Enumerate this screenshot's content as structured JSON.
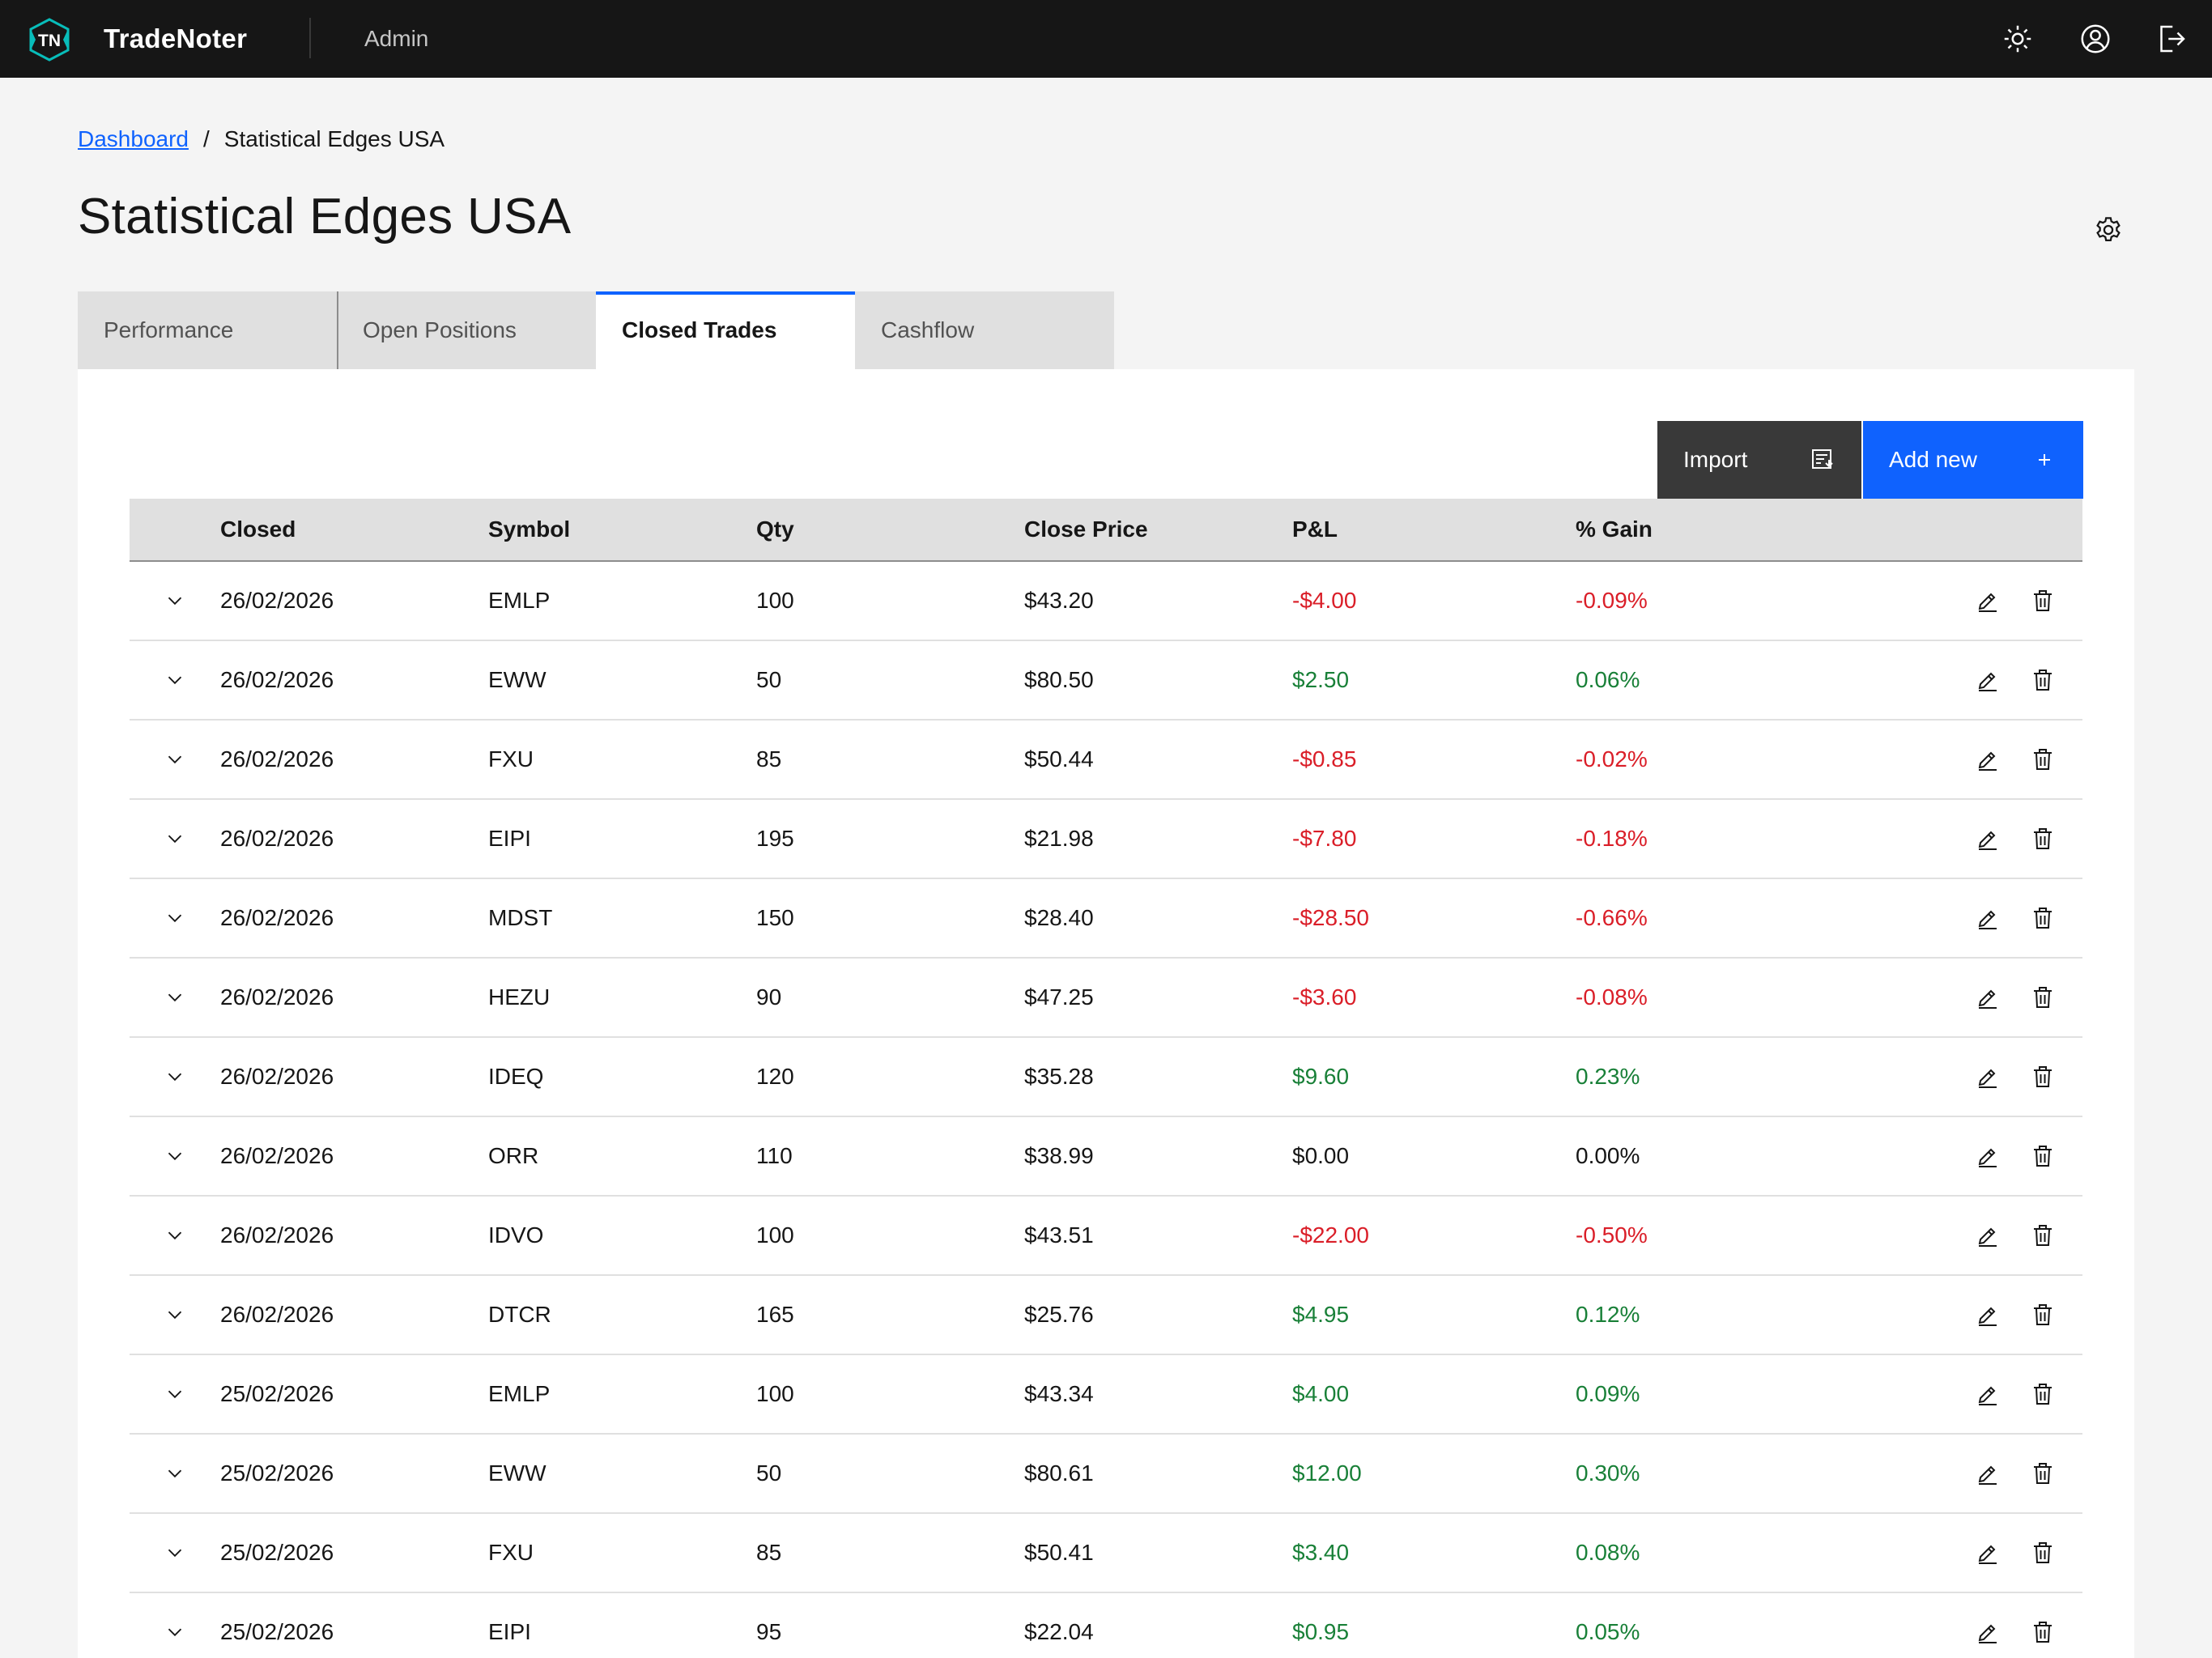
{
  "app": {
    "logo_text": "TN",
    "name": "TradeNoter",
    "user_role": "Admin"
  },
  "header_icons": [
    "sun-icon",
    "user-avatar-icon",
    "logout-icon"
  ],
  "breadcrumb": {
    "parent": "Dashboard",
    "separator": "/",
    "current": "Statistical Edges USA"
  },
  "page": {
    "title": "Statistical Edges USA"
  },
  "tabs": [
    {
      "label": "Performance",
      "active": false
    },
    {
      "label": "Open Positions",
      "active": false
    },
    {
      "label": "Closed Trades",
      "active": true
    },
    {
      "label": "Cashflow",
      "active": false
    }
  ],
  "toolbar": {
    "import_label": "Import",
    "add_label": "Add new"
  },
  "table": {
    "columns": [
      "Closed",
      "Symbol",
      "Qty",
      "Close Price",
      "P&L",
      "% Gain"
    ],
    "rows": [
      {
        "closed": "26/02/2026",
        "symbol": "EMLP",
        "qty": "100",
        "price": "$43.20",
        "pnl": "-$4.00",
        "gain": "-0.09%",
        "tone": "neg"
      },
      {
        "closed": "26/02/2026",
        "symbol": "EWW",
        "qty": "50",
        "price": "$80.50",
        "pnl": "$2.50",
        "gain": "0.06%",
        "tone": "pos"
      },
      {
        "closed": "26/02/2026",
        "symbol": "FXU",
        "qty": "85",
        "price": "$50.44",
        "pnl": "-$0.85",
        "gain": "-0.02%",
        "tone": "neg"
      },
      {
        "closed": "26/02/2026",
        "symbol": "EIPI",
        "qty": "195",
        "price": "$21.98",
        "pnl": "-$7.80",
        "gain": "-0.18%",
        "tone": "neg"
      },
      {
        "closed": "26/02/2026",
        "symbol": "MDST",
        "qty": "150",
        "price": "$28.40",
        "pnl": "-$28.50",
        "gain": "-0.66%",
        "tone": "neg"
      },
      {
        "closed": "26/02/2026",
        "symbol": "HEZU",
        "qty": "90",
        "price": "$47.25",
        "pnl": "-$3.60",
        "gain": "-0.08%",
        "tone": "neg"
      },
      {
        "closed": "26/02/2026",
        "symbol": "IDEQ",
        "qty": "120",
        "price": "$35.28",
        "pnl": "$9.60",
        "gain": "0.23%",
        "tone": "pos"
      },
      {
        "closed": "26/02/2026",
        "symbol": "ORR",
        "qty": "110",
        "price": "$38.99",
        "pnl": "$0.00",
        "gain": "0.00%",
        "tone": "neu"
      },
      {
        "closed": "26/02/2026",
        "symbol": "IDVO",
        "qty": "100",
        "price": "$43.51",
        "pnl": "-$22.00",
        "gain": "-0.50%",
        "tone": "neg"
      },
      {
        "closed": "26/02/2026",
        "symbol": "DTCR",
        "qty": "165",
        "price": "$25.76",
        "pnl": "$4.95",
        "gain": "0.12%",
        "tone": "pos"
      },
      {
        "closed": "25/02/2026",
        "symbol": "EMLP",
        "qty": "100",
        "price": "$43.34",
        "pnl": "$4.00",
        "gain": "0.09%",
        "tone": "pos"
      },
      {
        "closed": "25/02/2026",
        "symbol": "EWW",
        "qty": "50",
        "price": "$80.61",
        "pnl": "$12.00",
        "gain": "0.30%",
        "tone": "pos"
      },
      {
        "closed": "25/02/2026",
        "symbol": "FXU",
        "qty": "85",
        "price": "$50.41",
        "pnl": "$3.40",
        "gain": "0.08%",
        "tone": "pos"
      },
      {
        "closed": "25/02/2026",
        "symbol": "EIPI",
        "qty": "95",
        "price": "$22.04",
        "pnl": "$0.95",
        "gain": "0.05%",
        "tone": "pos"
      }
    ]
  },
  "colors": {
    "header_bg": "#161616",
    "accent": "#0f62fe",
    "negative": "#da1e28",
    "positive": "#198038",
    "logo_accent": "#08bdba"
  }
}
